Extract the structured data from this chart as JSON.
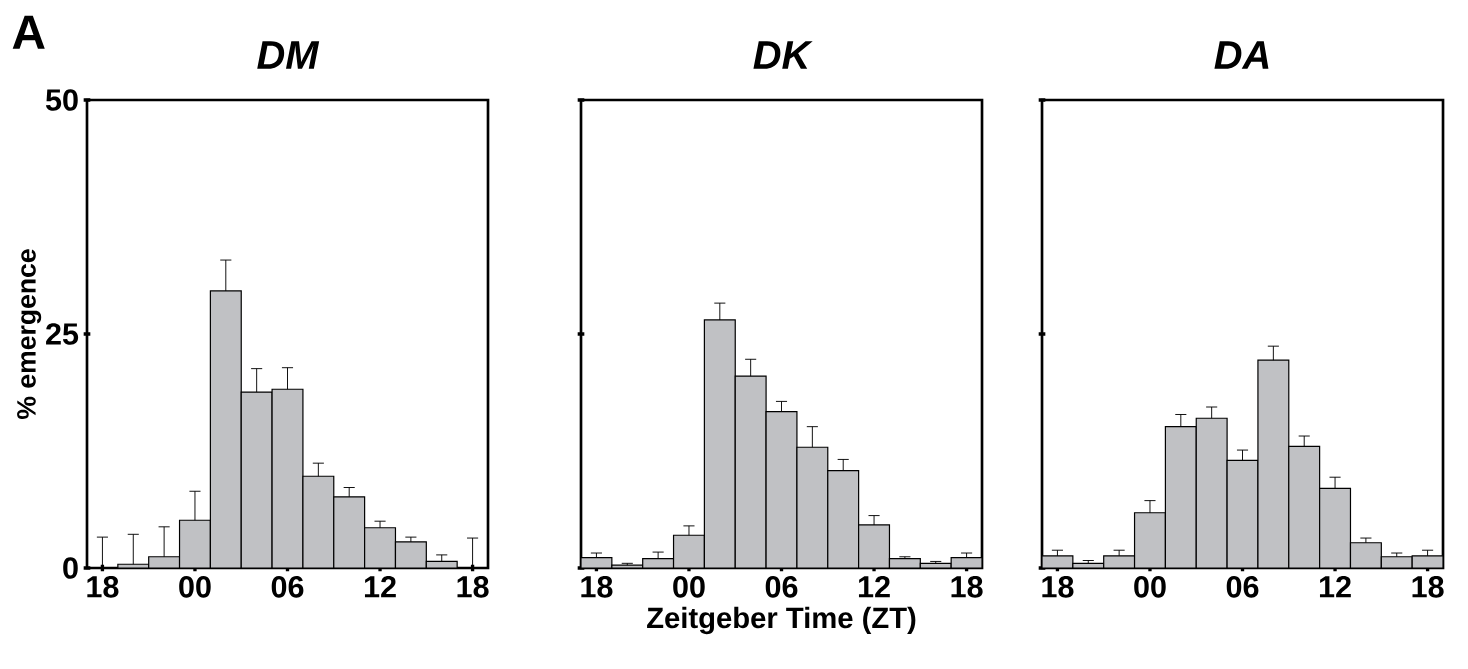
{
  "chart_data": [
    {
      "type": "bar",
      "title": "DM",
      "ylabel": "% emergence",
      "annotations": [
        "A"
      ],
      "color": "#c0c1c4",
      "categories": [
        "18",
        null,
        null,
        "00",
        null,
        null,
        "06",
        null,
        null,
        "12",
        null,
        null,
        "18"
      ],
      "values": [
        0,
        0.4,
        1.2,
        5.1,
        29.6,
        18.8,
        19.1,
        9.8,
        7.6,
        4.3,
        2.8,
        0.7,
        0
      ],
      "errors": [
        [
          0,
          3.3
        ],
        [
          0.4,
          3.6
        ],
        [
          1.2,
          4.4
        ],
        [
          5.1,
          8.2
        ],
        [
          29.6,
          32.9
        ],
        [
          18.8,
          21.3
        ],
        [
          19.1,
          21.4
        ],
        [
          9.8,
          11.2
        ],
        [
          7.6,
          8.6
        ],
        [
          4.3,
          5.0
        ],
        [
          2.8,
          3.3
        ],
        [
          0.7,
          1.4
        ],
        [
          0,
          3.2
        ]
      ],
      "ylim": [
        0,
        50
      ],
      "yticks": [
        0,
        25,
        50
      ]
    },
    {
      "type": "bar",
      "title": "DK",
      "xlabel": "Zeitgeber Time (ZT)",
      "color": "#c0c1c4",
      "categories": [
        "18",
        null,
        null,
        "00",
        null,
        null,
        "06",
        null,
        null,
        "12",
        null,
        null,
        "18"
      ],
      "values": [
        1.1,
        0.3,
        1.0,
        3.5,
        26.5,
        20.5,
        16.7,
        12.9,
        10.4,
        4.6,
        1.0,
        0.5,
        1.1
      ],
      "errors": [
        [
          1.1,
          1.6
        ],
        [
          0.3,
          0.5
        ],
        [
          1.0,
          1.7
        ],
        [
          3.5,
          4.5
        ],
        [
          26.5,
          28.3
        ],
        [
          20.5,
          22.3
        ],
        [
          16.7,
          17.8
        ],
        [
          12.9,
          15.1
        ],
        [
          10.4,
          11.6
        ],
        [
          4.6,
          5.6
        ],
        [
          1.0,
          1.2
        ],
        [
          0.5,
          0.7
        ],
        [
          1.1,
          1.6
        ]
      ],
      "ylim": [
        0,
        50
      ],
      "yticks": [
        0,
        25,
        50
      ],
      "tick_labels": "x"
    },
    {
      "type": "bar",
      "title": "DA",
      "color": "#c0c1c4",
      "categories": [
        "18",
        null,
        null,
        "00",
        null,
        null,
        "06",
        null,
        null,
        "12",
        null,
        null,
        "18"
      ],
      "values": [
        1.3,
        0.5,
        1.3,
        5.9,
        15.1,
        16.0,
        11.5,
        22.2,
        13.0,
        8.5,
        2.7,
        1.2,
        1.3
      ],
      "errors": [
        [
          1.3,
          1.9
        ],
        [
          0.5,
          0.8
        ],
        [
          1.3,
          1.9
        ],
        [
          5.9,
          7.2
        ],
        [
          15.1,
          16.4
        ],
        [
          16.0,
          17.2
        ],
        [
          11.5,
          12.6
        ],
        [
          22.2,
          23.7
        ],
        [
          13.0,
          14.1
        ],
        [
          8.5,
          9.7
        ],
        [
          2.7,
          3.2
        ],
        [
          1.2,
          1.6
        ],
        [
          1.3,
          1.9
        ]
      ],
      "ylim": [
        0,
        50
      ],
      "yticks": [
        0,
        25,
        50
      ],
      "tick_labels": "x"
    }
  ]
}
